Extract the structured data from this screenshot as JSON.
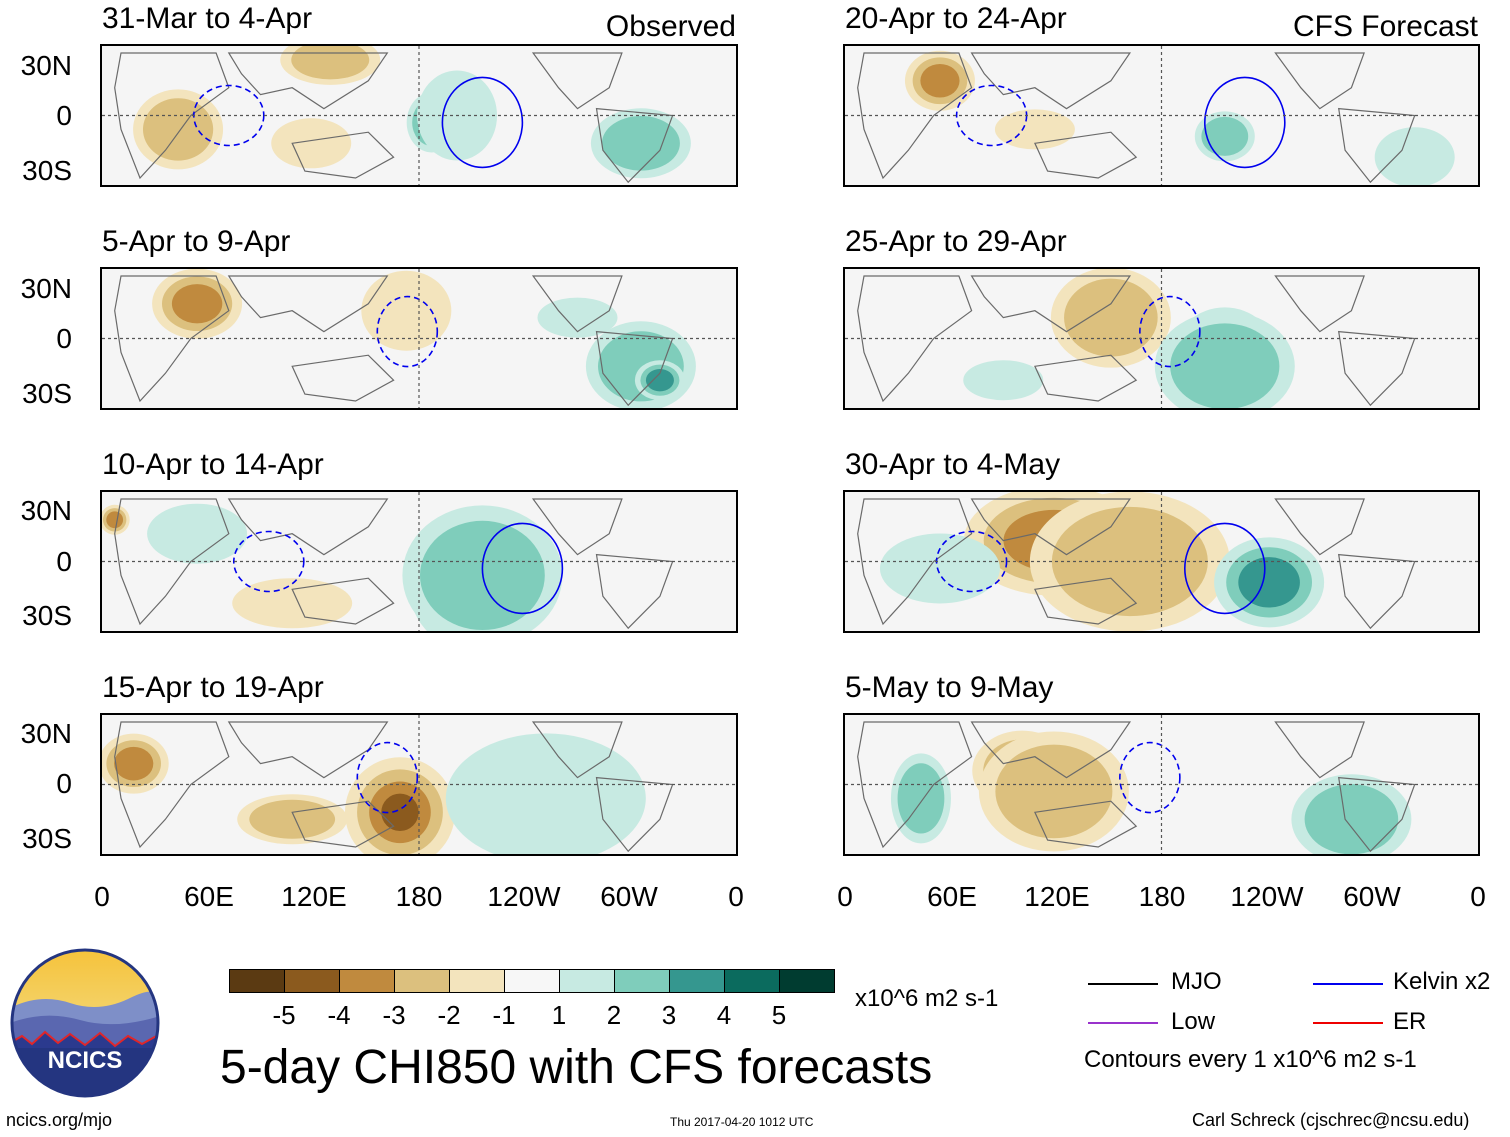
{
  "figure": {
    "title": "5-day CHI850 with CFS forecasts",
    "units": "x10^6 m2 s-1",
    "website": "ncics.org/mjo",
    "timestamp": "Thu 2017-04-20 1012 UTC",
    "author": "Carl Schreck (cjschrec@ncsu.edu)",
    "logo_text": "NCICS"
  },
  "columns": {
    "observed_label": "Observed",
    "forecast_label": "CFS Forecast"
  },
  "axes": {
    "y_labels": [
      "30N",
      "0",
      "30S"
    ],
    "x_labels": [
      "0",
      "60E",
      "120E",
      "180",
      "120W",
      "60W",
      "0"
    ]
  },
  "panels": {
    "observed": [
      {
        "title": "31-Mar to 4-Apr"
      },
      {
        "title": "5-Apr to 9-Apr"
      },
      {
        "title": "10-Apr to 14-Apr"
      },
      {
        "title": "15-Apr to 19-Apr"
      }
    ],
    "forecast": [
      {
        "title": "20-Apr to 24-Apr"
      },
      {
        "title": "25-Apr to 29-Apr"
      },
      {
        "title": "30-Apr to 4-May"
      },
      {
        "title": "5-May to 9-May"
      }
    ]
  },
  "colorbar": {
    "labels": [
      "-5",
      "-4",
      "-3",
      "-2",
      "-1",
      "1",
      "2",
      "3",
      "4",
      "5"
    ],
    "colors": [
      "#5b3a12",
      "#8b5a1e",
      "#c08a3e",
      "#dcc07e",
      "#f3e4bd",
      "#f7f7f7",
      "#c7eae2",
      "#7fcdbb",
      "#35978f",
      "#0b6b5e",
      "#003c30"
    ]
  },
  "legend": {
    "items": [
      {
        "label": "MJO",
        "color": "#000000"
      },
      {
        "label": "Kelvin x2",
        "color": "#0000ee"
      },
      {
        "label": "Low",
        "color": "#9932cc"
      },
      {
        "label": "ER",
        "color": "#ee0000"
      }
    ],
    "note": "Contours every 1 x10^6 m2 s-1"
  }
}
